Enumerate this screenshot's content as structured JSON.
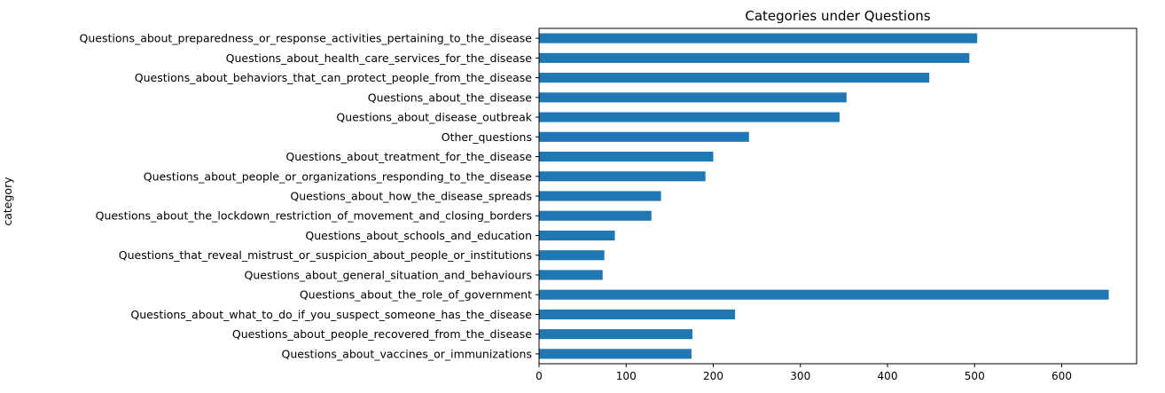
{
  "chart_data": {
    "type": "bar",
    "orientation": "horizontal",
    "title": "Categories under Questions",
    "ylabel": "category",
    "xlabel": "",
    "xlim": [
      0,
      686
    ],
    "xticks": [
      0,
      100,
      200,
      300,
      400,
      500,
      600
    ],
    "grid": false,
    "legend": false,
    "bar_color": "#1f77b4",
    "categories": [
      "Questions_about_preparedness_or_response_activities_pertaining_to_the_disease",
      "Questions_about_health_care_services_for_the_disease",
      "Questions_about_behaviors_that_can_protect_people_from_the_disease",
      "Questions_about_the_disease",
      "Questions_about_disease_outbreak",
      "Other_questions",
      "Questions_about_treatment_for_the_disease",
      "Questions_about_people_or_organizations_responding_to_the_disease",
      "Questions_about_how_the_disease_spreads",
      "Questions_about_the_lockdown_restriction_of_movement_and_closing_borders",
      "Questions_about_schools_and_education",
      "Questions_that_reveal_mistrust_or_suspicion_about_people_or_institutions",
      "Questions_about_general_situation_and_behaviours",
      "Questions_about_the_role_of_government",
      "Questions_about_what_to_do_if_you_suspect_someone_has_the_disease",
      "Questions_about_people_recovered_from_the_disease",
      "Questions_about_vaccines_or_immunizations"
    ],
    "values": [
      503,
      494,
      448,
      353,
      345,
      241,
      200,
      191,
      140,
      129,
      87,
      75,
      73,
      654,
      225,
      176,
      175
    ]
  }
}
